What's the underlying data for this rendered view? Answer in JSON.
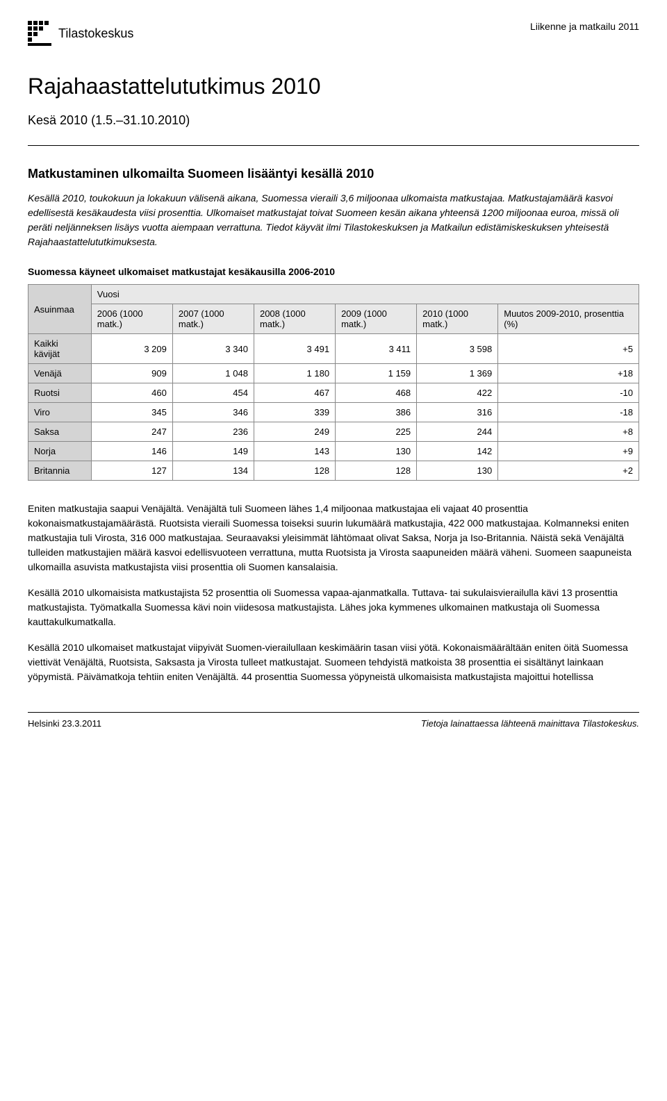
{
  "header": {
    "logo_text": "Tilastokeskus",
    "category": "Liikenne ja matkailu 2011"
  },
  "title": "Rajahaastattelututkimus 2010",
  "subtitle": "Kesä 2010 (1.5.–31.10.2010)",
  "section_heading": "Matkustaminen ulkomailta Suomeen lisääntyi kesällä 2010",
  "intro": "Kesällä 2010, toukokuun ja lokakuun välisenä aikana, Suomessa vieraili 3,6 miljoonaa ulkomaista matkustajaa. Matkustajamäärä kasvoi edellisestä kesäkaudesta viisi prosenttia. Ulkomaiset matkustajat toivat Suomeen kesän aikana yhteensä 1200 miljoonaa euroa, missä oli peräti neljänneksen lisäys vuotta aiempaan verrattuna. Tiedot käyvät ilmi Tilastokeskuksen ja Matkailun edistämiskeskuksen yhteisestä Rajahaastattelututkimuksesta.",
  "table": {
    "title": "Suomessa käyneet ulkomaiset matkustajat kesäkausilla 2006-2010",
    "colhead_country": "Asuinmaa",
    "colhead_year": "Vuosi",
    "columns": [
      "2006 (1000 matk.)",
      "2007 (1000 matk.)",
      "2008 (1000 matk.)",
      "2009 (1000 matk.)",
      "2010 (1000 matk.)",
      "Muutos 2009-2010, prosenttia (%)"
    ],
    "rows": [
      {
        "name": "Kaikki kävijät",
        "vals": [
          "3 209",
          "3 340",
          "3 491",
          "3 411",
          "3 598",
          "+5"
        ]
      },
      {
        "name": "Venäjä",
        "vals": [
          "909",
          "1 048",
          "1 180",
          "1 159",
          "1 369",
          "+18"
        ]
      },
      {
        "name": "Ruotsi",
        "vals": [
          "460",
          "454",
          "467",
          "468",
          "422",
          "-10"
        ]
      },
      {
        "name": "Viro",
        "vals": [
          "345",
          "346",
          "339",
          "386",
          "316",
          "-18"
        ]
      },
      {
        "name": "Saksa",
        "vals": [
          "247",
          "236",
          "249",
          "225",
          "244",
          "+8"
        ]
      },
      {
        "name": "Norja",
        "vals": [
          "146",
          "149",
          "143",
          "130",
          "142",
          "+9"
        ]
      },
      {
        "name": "Britannia",
        "vals": [
          "127",
          "134",
          "128",
          "128",
          "130",
          "+2"
        ]
      }
    ]
  },
  "paragraphs": [
    "Eniten matkustajia saapui Venäjältä. Venäjältä tuli Suomeen lähes 1,4 miljoonaa matkustajaa eli vajaat 40 prosenttia kokonaismatkustajamäärästä. Ruotsista vieraili Suomessa toiseksi suurin lukumäärä matkustajia, 422 000 matkustajaa. Kolmanneksi eniten matkustajia tuli Virosta, 316 000 matkustajaa. Seuraavaksi yleisimmät lähtömaat olivat Saksa, Norja ja Iso-Britannia. Näistä sekä Venäjältä tulleiden matkustajien määrä kasvoi edellisvuoteen verrattuna, mutta Ruotsista ja Virosta saapuneiden määrä väheni. Suomeen saapuneista ulkomailla asuvista matkustajista viisi prosenttia oli Suomen kansalaisia.",
    "Kesällä 2010 ulkomaisista matkustajista 52 prosenttia oli Suomessa vapaa-ajanmatkalla. Tuttava- tai sukulaisvierailulla kävi 13 prosenttia matkustajista. Työmatkalla Suomessa kävi noin viidesosa matkustajista. Lähes joka kymmenes ulkomainen matkustaja oli Suomessa kauttakulkumatkalla.",
    "Kesällä 2010 ulkomaiset matkustajat viipyivät Suomen-vierailullaan keskimäärin tasan viisi yötä. Kokonaismäärältään eniten öitä Suomessa viettivät Venäjältä, Ruotsista, Saksasta ja Virosta tulleet matkustajat. Suomeen tehdyistä matkoista 38 prosenttia ei sisältänyt lainkaan yöpymistä. Päivämatkoja tehtiin eniten Venäjältä. 44 prosenttia Suomessa yöpyneistä ulkomaisista matkustajista majoittui hotellissa"
  ],
  "footer": {
    "left": "Helsinki 23.3.2011",
    "right": "Tietoja lainattaessa lähteenä mainittava Tilastokeskus."
  },
  "colors": {
    "th_bg": "#e8e8e8",
    "rowhead_bg": "#d4d4d4",
    "border": "#888888",
    "text": "#000000"
  }
}
